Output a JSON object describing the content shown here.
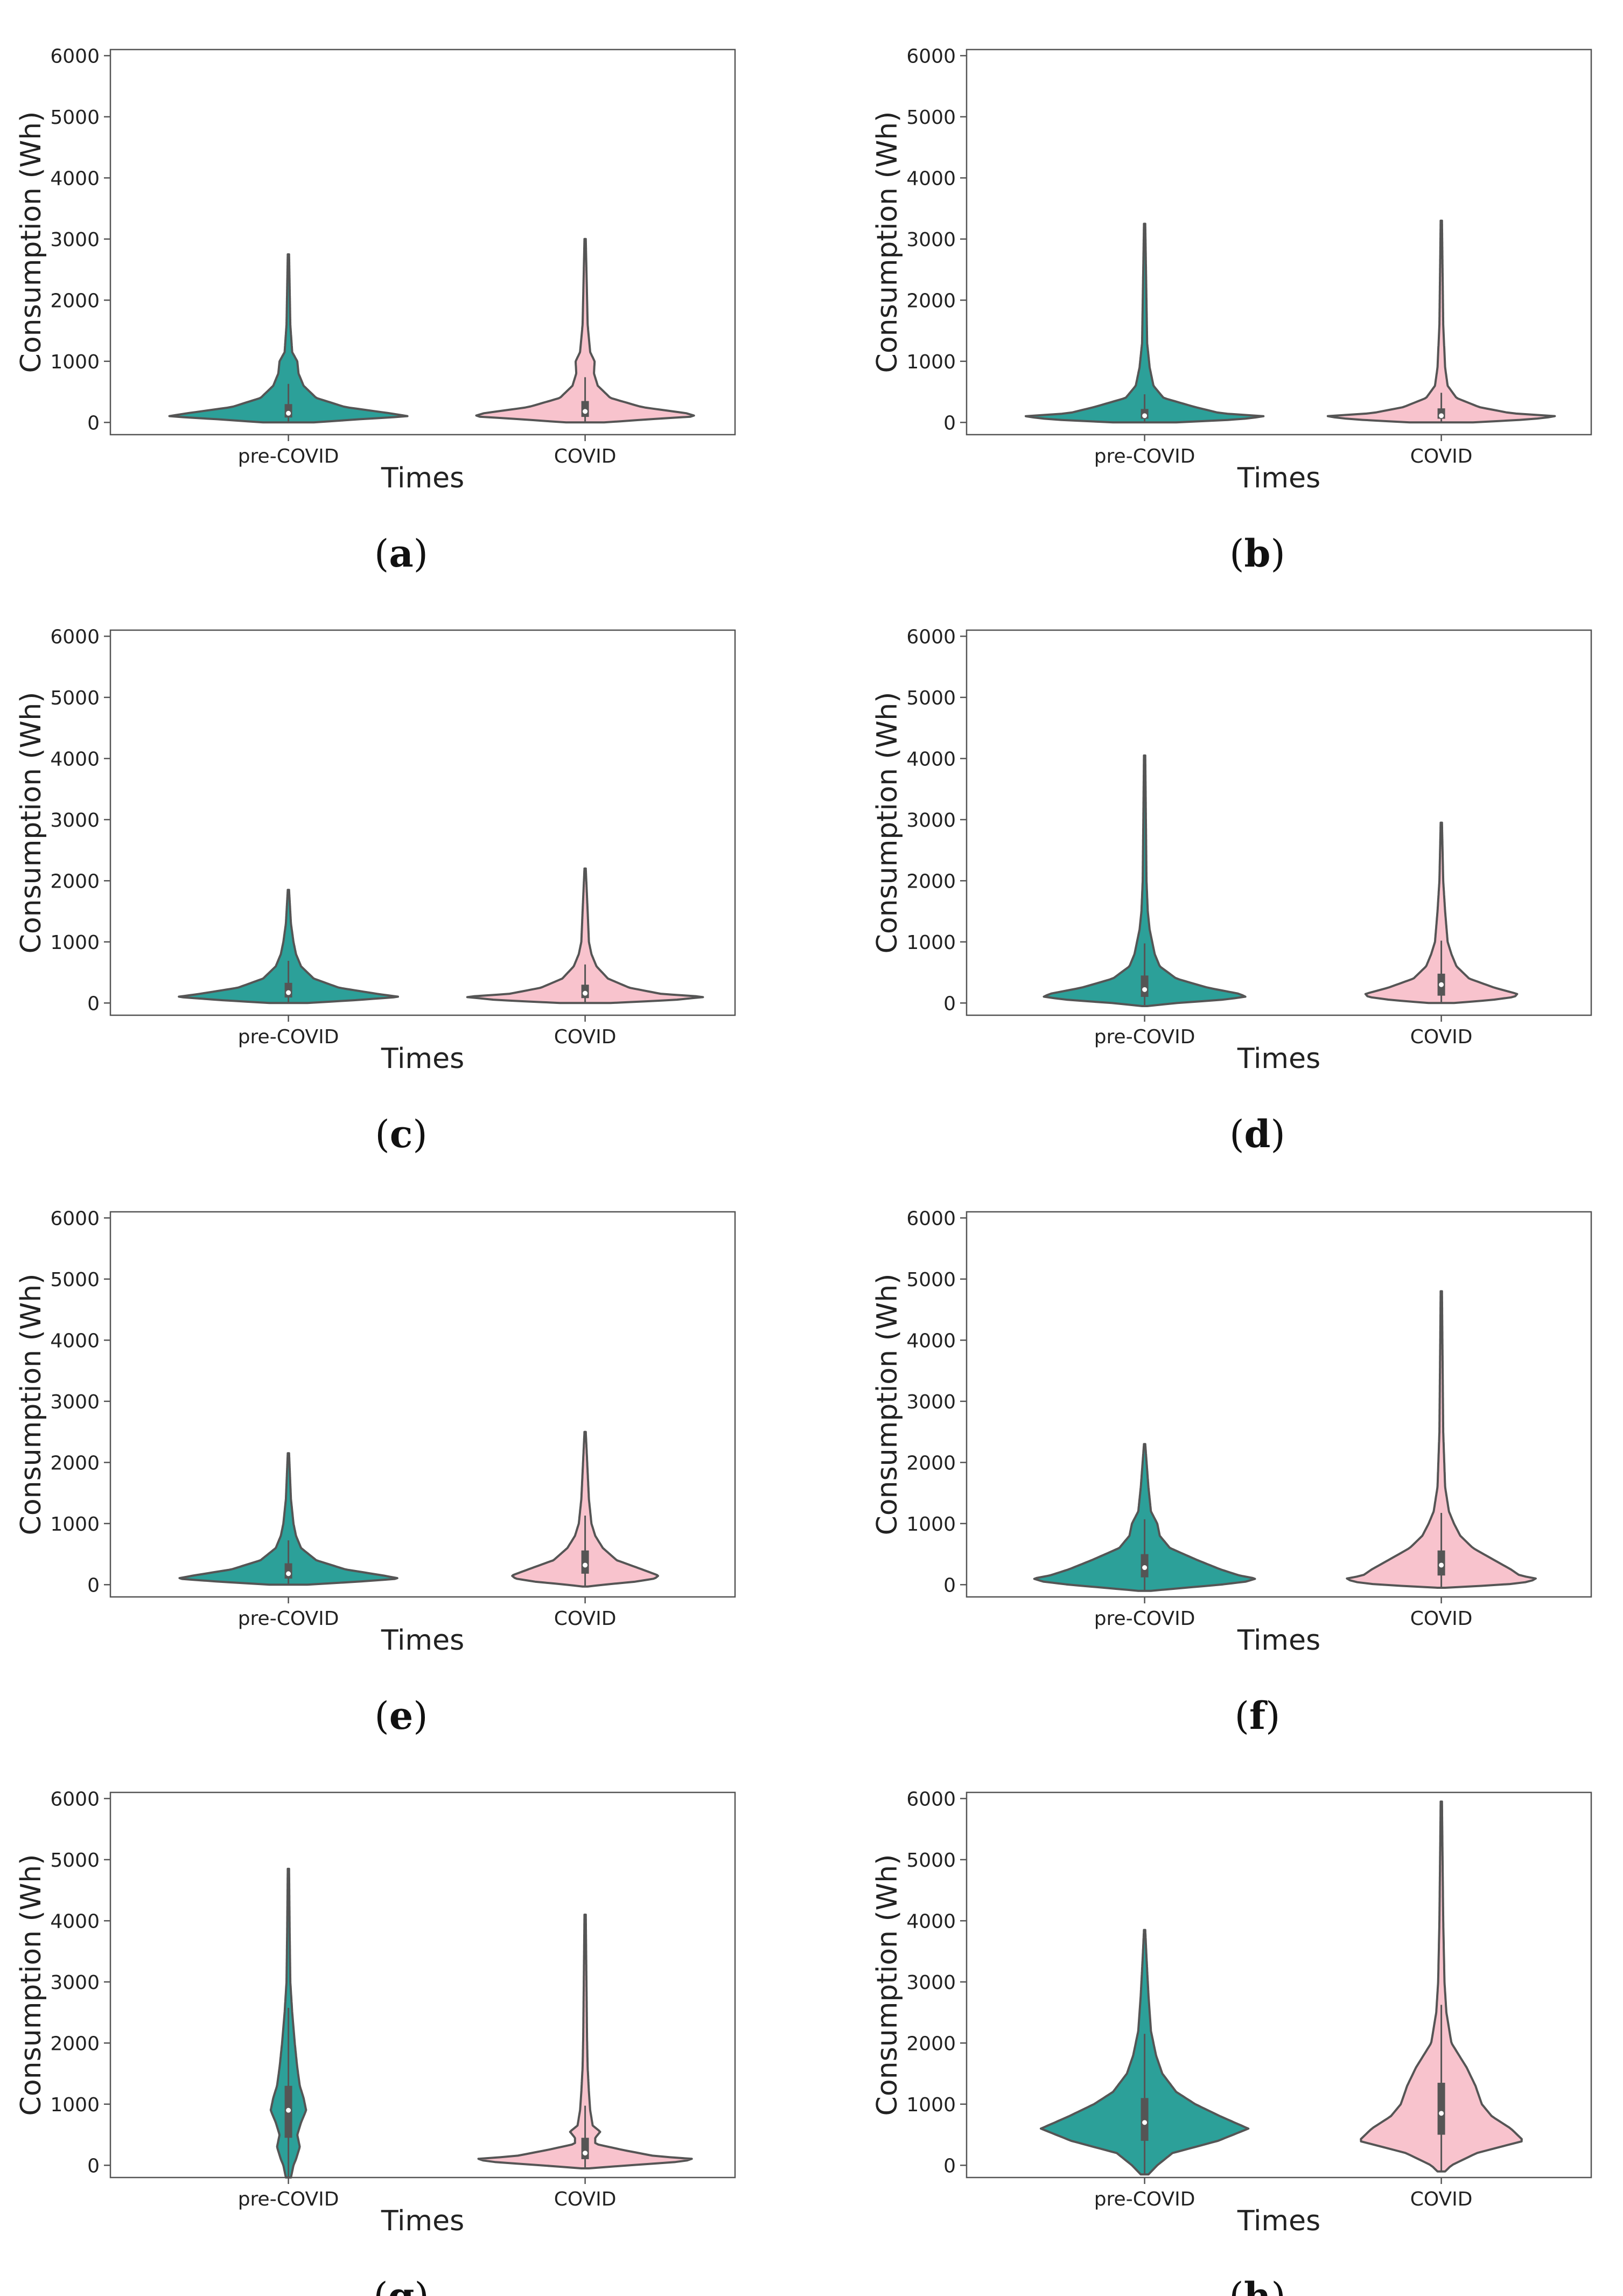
{
  "figure": {
    "colors": {
      "pre_covid": "#2ca099",
      "covid": "#f8c3cd",
      "outline": "#555555"
    }
  },
  "chart_data": [
    {
      "type": "violin",
      "panel": "a",
      "xlabel": "Times",
      "ylabel": "Consumption (Wh)",
      "categories": [
        "pre-COVID",
        "COVID"
      ],
      "ylim": [
        -200,
        6100
      ],
      "yticks": [
        "0",
        "1000",
        "2000",
        "3000",
        "4000",
        "5000",
        "6000"
      ],
      "series": [
        {
          "name": "pre-COVID",
          "min": 0,
          "max": 2750,
          "q1": 80,
          "median": 150,
          "q3": 300,
          "profile": [
            [
              0,
              0.2
            ],
            [
              50,
              0.55
            ],
            [
              100,
              0.95
            ],
            [
              150,
              0.8
            ],
            [
              250,
              0.45
            ],
            [
              400,
              0.22
            ],
            [
              600,
              0.12
            ],
            [
              800,
              0.08
            ],
            [
              1000,
              0.07
            ],
            [
              1150,
              0.03
            ],
            [
              1600,
              0.015
            ],
            [
              2750,
              0.005
            ]
          ]
        },
        {
          "name": "COVID",
          "min": 0,
          "max": 3000,
          "q1": 90,
          "median": 180,
          "q3": 350,
          "profile": [
            [
              0,
              0.15
            ],
            [
              50,
              0.5
            ],
            [
              100,
              0.88
            ],
            [
              150,
              0.8
            ],
            [
              250,
              0.45
            ],
            [
              400,
              0.2
            ],
            [
              600,
              0.1
            ],
            [
              800,
              0.07
            ],
            [
              1000,
              0.075
            ],
            [
              1150,
              0.04
            ],
            [
              1600,
              0.02
            ],
            [
              3000,
              0.005
            ]
          ]
        }
      ]
    },
    {
      "type": "violin",
      "panel": "b",
      "xlabel": "Times",
      "ylabel": "Consumption (Wh)",
      "categories": [
        "pre-COVID",
        "COVID"
      ],
      "ylim": [
        -200,
        6100
      ],
      "yticks": [
        "0",
        "1000",
        "2000",
        "3000",
        "4000",
        "5000",
        "6000"
      ],
      "series": [
        {
          "name": "pre-COVID",
          "min": 0,
          "max": 3250,
          "q1": 60,
          "median": 110,
          "q3": 220,
          "profile": [
            [
              0,
              0.25
            ],
            [
              50,
              0.75
            ],
            [
              100,
              0.95
            ],
            [
              150,
              0.6
            ],
            [
              250,
              0.4
            ],
            [
              400,
              0.15
            ],
            [
              600,
              0.07
            ],
            [
              900,
              0.04
            ],
            [
              1300,
              0.02
            ],
            [
              3250,
              0.005
            ]
          ]
        },
        {
          "name": "COVID",
          "min": 0,
          "max": 3300,
          "q1": 60,
          "median": 110,
          "q3": 230,
          "profile": [
            [
              0,
              0.25
            ],
            [
              50,
              0.7
            ],
            [
              100,
              0.92
            ],
            [
              150,
              0.55
            ],
            [
              250,
              0.3
            ],
            [
              400,
              0.12
            ],
            [
              600,
              0.05
            ],
            [
              900,
              0.03
            ],
            [
              1600,
              0.015
            ],
            [
              3300,
              0.005
            ]
          ]
        }
      ]
    },
    {
      "type": "violin",
      "panel": "c",
      "xlabel": "Times",
      "ylabel": "Consumption (Wh)",
      "categories": [
        "pre-COVID",
        "COVID"
      ],
      "ylim": [
        -200,
        6100
      ],
      "yticks": [
        "0",
        "1000",
        "2000",
        "3000",
        "4000",
        "5000",
        "6000"
      ],
      "series": [
        {
          "name": "pre-COVID",
          "min": 0,
          "max": 1850,
          "q1": 90,
          "median": 170,
          "q3": 330,
          "profile": [
            [
              0,
              0.15
            ],
            [
              50,
              0.55
            ],
            [
              100,
              0.88
            ],
            [
              150,
              0.7
            ],
            [
              250,
              0.4
            ],
            [
              400,
              0.2
            ],
            [
              600,
              0.1
            ],
            [
              800,
              0.06
            ],
            [
              1000,
              0.04
            ],
            [
              1300,
              0.02
            ],
            [
              1850,
              0.005
            ]
          ]
        },
        {
          "name": "COVID",
          "min": 0,
          "max": 2200,
          "q1": 80,
          "median": 160,
          "q3": 300,
          "profile": [
            [
              0,
              0.2
            ],
            [
              50,
              0.7
            ],
            [
              100,
              0.95
            ],
            [
              150,
              0.6
            ],
            [
              250,
              0.35
            ],
            [
              400,
              0.18
            ],
            [
              600,
              0.09
            ],
            [
              800,
              0.05
            ],
            [
              1000,
              0.03
            ],
            [
              1500,
              0.02
            ],
            [
              2200,
              0.005
            ]
          ]
        }
      ]
    },
    {
      "type": "violin",
      "panel": "d",
      "xlabel": "Times",
      "ylabel": "Consumption (Wh)",
      "categories": [
        "pre-COVID",
        "COVID"
      ],
      "ylim": [
        -200,
        6100
      ],
      "yticks": [
        "0",
        "1000",
        "2000",
        "3000",
        "4000",
        "5000",
        "6000"
      ],
      "series": [
        {
          "name": "pre-COVID",
          "min": -50,
          "max": 4050,
          "q1": 100,
          "median": 220,
          "q3": 450,
          "profile": [
            [
              -50,
              0.02
            ],
            [
              0,
              0.25
            ],
            [
              50,
              0.6
            ],
            [
              100,
              0.8
            ],
            [
              150,
              0.75
            ],
            [
              250,
              0.5
            ],
            [
              400,
              0.25
            ],
            [
              600,
              0.12
            ],
            [
              800,
              0.08
            ],
            [
              1000,
              0.06
            ],
            [
              1200,
              0.04
            ],
            [
              1500,
              0.025
            ],
            [
              2000,
              0.015
            ],
            [
              4050,
              0.005
            ]
          ]
        },
        {
          "name": "COVID",
          "min": 0,
          "max": 2950,
          "q1": 120,
          "median": 300,
          "q3": 480,
          "profile": [
            [
              0,
              0.1
            ],
            [
              50,
              0.4
            ],
            [
              100,
              0.58
            ],
            [
              150,
              0.6
            ],
            [
              250,
              0.42
            ],
            [
              400,
              0.22
            ],
            [
              600,
              0.12
            ],
            [
              800,
              0.08
            ],
            [
              1000,
              0.05
            ],
            [
              1500,
              0.03
            ],
            [
              2000,
              0.015
            ],
            [
              2950,
              0.005
            ]
          ]
        }
      ]
    },
    {
      "type": "violin",
      "panel": "e",
      "xlabel": "Times",
      "ylabel": "Consumption (Wh)",
      "categories": [
        "pre-COVID",
        "COVID"
      ],
      "ylim": [
        -200,
        6100
      ],
      "yticks": [
        "0",
        "1000",
        "2000",
        "3000",
        "4000",
        "5000",
        "6000"
      ],
      "series": [
        {
          "name": "pre-COVID",
          "min": 0,
          "max": 2150,
          "q1": 100,
          "median": 180,
          "q3": 350,
          "profile": [
            [
              0,
              0.15
            ],
            [
              50,
              0.55
            ],
            [
              100,
              0.88
            ],
            [
              150,
              0.75
            ],
            [
              250,
              0.45
            ],
            [
              400,
              0.22
            ],
            [
              600,
              0.1
            ],
            [
              800,
              0.06
            ],
            [
              1000,
              0.04
            ],
            [
              1400,
              0.02
            ],
            [
              2150,
              0.005
            ]
          ]
        },
        {
          "name": "COVID",
          "min": -30,
          "max": 2500,
          "q1": 180,
          "median": 320,
          "q3": 560,
          "profile": [
            [
              -30,
              0.02
            ],
            [
              0,
              0.15
            ],
            [
              50,
              0.4
            ],
            [
              100,
              0.55
            ],
            [
              150,
              0.58
            ],
            [
              250,
              0.45
            ],
            [
              400,
              0.25
            ],
            [
              600,
              0.14
            ],
            [
              800,
              0.08
            ],
            [
              1000,
              0.05
            ],
            [
              1400,
              0.03
            ],
            [
              2500,
              0.005
            ]
          ]
        }
      ]
    },
    {
      "type": "violin",
      "panel": "f",
      "xlabel": "Times",
      "ylabel": "Consumption (Wh)",
      "categories": [
        "pre-COVID",
        "COVID"
      ],
      "ylim": [
        -200,
        6100
      ],
      "yticks": [
        "0",
        "1000",
        "2000",
        "3000",
        "4000",
        "5000",
        "6000"
      ],
      "series": [
        {
          "name": "pre-COVID",
          "min": -100,
          "max": 2300,
          "q1": 120,
          "median": 280,
          "q3": 500,
          "profile": [
            [
              -100,
              0.05
            ],
            [
              0,
              0.6
            ],
            [
              50,
              0.8
            ],
            [
              100,
              0.88
            ],
            [
              150,
              0.75
            ],
            [
              250,
              0.6
            ],
            [
              400,
              0.42
            ],
            [
              600,
              0.2
            ],
            [
              800,
              0.12
            ],
            [
              1000,
              0.1
            ],
            [
              1200,
              0.05
            ],
            [
              1600,
              0.03
            ],
            [
              2300,
              0.005
            ]
          ]
        },
        {
          "name": "COVID",
          "min": -50,
          "max": 4800,
          "q1": 150,
          "median": 320,
          "q3": 560,
          "profile": [
            [
              -50,
              0.03
            ],
            [
              0,
              0.5
            ],
            [
              50,
              0.7
            ],
            [
              100,
              0.75
            ],
            [
              150,
              0.62
            ],
            [
              250,
              0.55
            ],
            [
              400,
              0.42
            ],
            [
              600,
              0.25
            ],
            [
              800,
              0.15
            ],
            [
              1000,
              0.1
            ],
            [
              1200,
              0.06
            ],
            [
              1600,
              0.03
            ],
            [
              2500,
              0.015
            ],
            [
              4800,
              0.005
            ]
          ]
        }
      ]
    },
    {
      "type": "violin",
      "panel": "g",
      "xlabel": "Times",
      "ylabel": "Consumption (Wh)",
      "categories": [
        "pre-COVID",
        "COVID"
      ],
      "ylim": [
        -200,
        6100
      ],
      "yticks": [
        "0",
        "1000",
        "2000",
        "3000",
        "4000",
        "5000",
        "6000"
      ],
      "series": [
        {
          "name": "pre-COVID",
          "min": -200,
          "max": 4850,
          "q1": 450,
          "median": 900,
          "q3": 1300,
          "profile": [
            [
              -200,
              0.02
            ],
            [
              0,
              0.04
            ],
            [
              100,
              0.06
            ],
            [
              300,
              0.09
            ],
            [
              500,
              0.07
            ],
            [
              700,
              0.1
            ],
            [
              900,
              0.14
            ],
            [
              1100,
              0.12
            ],
            [
              1300,
              0.09
            ],
            [
              1600,
              0.07
            ],
            [
              2000,
              0.05
            ],
            [
              2500,
              0.03
            ],
            [
              3000,
              0.015
            ],
            [
              3800,
              0.01
            ],
            [
              4850,
              0.005
            ]
          ]
        },
        {
          "name": "COVID",
          "min": -50,
          "max": 4100,
          "q1": 100,
          "median": 200,
          "q3": 450,
          "profile": [
            [
              -50,
              0.03
            ],
            [
              0,
              0.35
            ],
            [
              50,
              0.7
            ],
            [
              100,
              0.88
            ],
            [
              150,
              0.55
            ],
            [
              250,
              0.3
            ],
            [
              350,
              0.08
            ],
            [
              450,
              0.08
            ],
            [
              550,
              0.12
            ],
            [
              650,
              0.06
            ],
            [
              900,
              0.04
            ],
            [
              1200,
              0.03
            ],
            [
              1600,
              0.02
            ],
            [
              2100,
              0.015
            ],
            [
              4100,
              0.005
            ]
          ]
        }
      ]
    },
    {
      "type": "violin",
      "panel": "h",
      "xlabel": "Times",
      "ylabel": "Consumption (Wh)",
      "categories": [
        "pre-COVID",
        "COVID"
      ],
      "ylim": [
        -200,
        6100
      ],
      "yticks": [
        "0",
        "1000",
        "2000",
        "3000",
        "4000",
        "5000",
        "6000"
      ],
      "series": [
        {
          "name": "pre-COVID",
          "min": -150,
          "max": 3850,
          "q1": 400,
          "median": 700,
          "q3": 1100,
          "profile": [
            [
              -150,
              0.03
            ],
            [
              0,
              0.1
            ],
            [
              200,
              0.22
            ],
            [
              400,
              0.58
            ],
            [
              600,
              0.82
            ],
            [
              800,
              0.6
            ],
            [
              1000,
              0.4
            ],
            [
              1200,
              0.25
            ],
            [
              1500,
              0.14
            ],
            [
              1800,
              0.09
            ],
            [
              2200,
              0.05
            ],
            [
              2800,
              0.03
            ],
            [
              3400,
              0.015
            ],
            [
              3850,
              0.005
            ]
          ]
        },
        {
          "name": "COVID",
          "min": -100,
          "max": 5950,
          "q1": 500,
          "median": 850,
          "q3": 1350,
          "profile": [
            [
              -100,
              0.03
            ],
            [
              0,
              0.08
            ],
            [
              200,
              0.28
            ],
            [
              400,
              0.65
            ],
            [
              600,
              0.55
            ],
            [
              800,
              0.4
            ],
            [
              1000,
              0.32
            ],
            [
              1300,
              0.27
            ],
            [
              1600,
              0.2
            ],
            [
              2000,
              0.08
            ],
            [
              2500,
              0.04
            ],
            [
              3000,
              0.025
            ],
            [
              4000,
              0.015
            ],
            [
              5950,
              0.005
            ]
          ]
        }
      ]
    }
  ]
}
